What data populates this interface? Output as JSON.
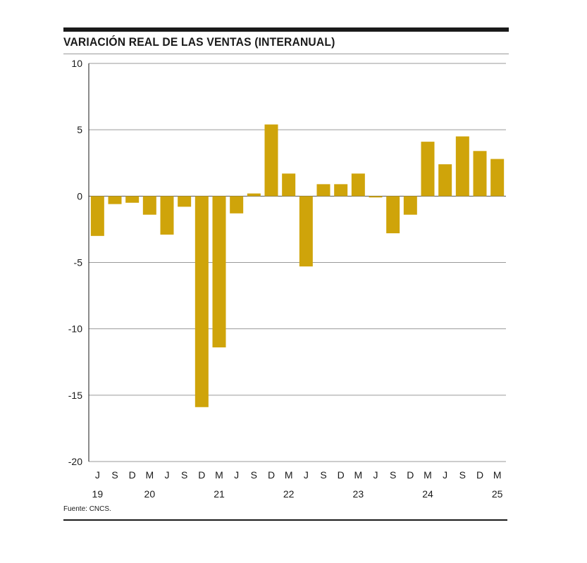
{
  "title": "VARIACIÓN REAL DE LAS VENTAS (INTERANUAL)",
  "source": "Fuente: CNCS.",
  "chart_data": {
    "type": "bar",
    "title": "VARIACIÓN REAL DE LAS VENTAS (INTERANUAL)",
    "xlabel": "",
    "ylabel": "",
    "ylim": [
      -20,
      10
    ],
    "yticks": [
      10,
      5,
      0,
      -5,
      -10,
      -15,
      -20
    ],
    "grid": true,
    "bar_color": "#cfa40a",
    "categories": [
      "J 2019",
      "S 2019",
      "D 2019",
      "M 2020",
      "J 2020",
      "S 2020",
      "D 2020",
      "M 2021",
      "J 2021",
      "S 2021",
      "D 2021",
      "M 2022",
      "J 2022",
      "S 2022",
      "D 2022",
      "M 2023",
      "J 2023",
      "S 2023",
      "D 2023",
      "M 2024",
      "J 2024",
      "S 2024",
      "D 2024",
      "M 2025"
    ],
    "month_labels": [
      "J",
      "S",
      "D",
      "M",
      "J",
      "S",
      "D",
      "M",
      "J",
      "S",
      "D",
      "M",
      "J",
      "S",
      "D",
      "M",
      "J",
      "S",
      "D",
      "M",
      "J",
      "S",
      "D",
      "M"
    ],
    "year_labels": [
      {
        "index": 0,
        "label": "19"
      },
      {
        "index": 3,
        "label": "20"
      },
      {
        "index": 7,
        "label": "21"
      },
      {
        "index": 11,
        "label": "22"
      },
      {
        "index": 15,
        "label": "23"
      },
      {
        "index": 19,
        "label": "24"
      },
      {
        "index": 23,
        "label": "25"
      }
    ],
    "values": [
      -3.0,
      -0.6,
      -0.5,
      -1.4,
      -2.9,
      -0.8,
      -15.9,
      -11.4,
      -1.3,
      0.2,
      5.4,
      1.7,
      -5.3,
      0.9,
      0.9,
      1.7,
      -0.1,
      -2.8,
      -1.4,
      4.1,
      2.4,
      4.5,
      3.4,
      2.8
    ]
  }
}
